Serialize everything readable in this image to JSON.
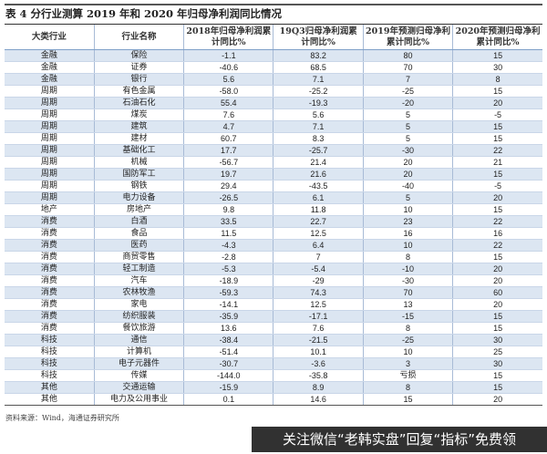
{
  "title": "表 4 分行业测算 2019 年和 2020 年归母净利润同比情况",
  "headers": [
    "大类行业",
    "行业名称",
    "2018年归母净利润累计同比%",
    "19Q3归母净利润累计同比%",
    "2019年预测归母净利累计同比%",
    "2020年预测归母净利累计同比%"
  ],
  "rows": [
    [
      "金融",
      "保险",
      "-1.1",
      "83.2",
      "80",
      "15"
    ],
    [
      "金融",
      "证券",
      "-40.6",
      "68.5",
      "70",
      "30"
    ],
    [
      "金融",
      "银行",
      "5.6",
      "7.1",
      "7",
      "8"
    ],
    [
      "周期",
      "有色金属",
      "-58.0",
      "-25.2",
      "-25",
      "15"
    ],
    [
      "周期",
      "石油石化",
      "55.4",
      "-19.3",
      "-20",
      "20"
    ],
    [
      "周期",
      "煤炭",
      "7.6",
      "5.6",
      "5",
      "-5"
    ],
    [
      "周期",
      "建筑",
      "4.7",
      "7.1",
      "5",
      "15"
    ],
    [
      "周期",
      "建材",
      "60.7",
      "8.3",
      "5",
      "15"
    ],
    [
      "周期",
      "基础化工",
      "17.7",
      "-25.7",
      "-30",
      "22"
    ],
    [
      "周期",
      "机械",
      "-56.7",
      "21.4",
      "20",
      "21"
    ],
    [
      "周期",
      "国防军工",
      "19.7",
      "21.6",
      "20",
      "15"
    ],
    [
      "周期",
      "钢铁",
      "29.4",
      "-43.5",
      "-40",
      "-5"
    ],
    [
      "周期",
      "电力设备",
      "-26.5",
      "6.1",
      "5",
      "20"
    ],
    [
      "地产",
      "房地产",
      "9.8",
      "11.8",
      "10",
      "15"
    ],
    [
      "消费",
      "白酒",
      "33.5",
      "22.7",
      "23",
      "22"
    ],
    [
      "消费",
      "食品",
      "11.5",
      "12.5",
      "16",
      "16"
    ],
    [
      "消费",
      "医药",
      "-4.3",
      "6.4",
      "10",
      "22"
    ],
    [
      "消费",
      "商贸零售",
      "-2.8",
      "7",
      "8",
      "15"
    ],
    [
      "消费",
      "轻工制造",
      "-5.3",
      "-5.4",
      "-10",
      "20"
    ],
    [
      "消费",
      "汽车",
      "-18.9",
      "-29",
      "-30",
      "20"
    ],
    [
      "消费",
      "农林牧渔",
      "-59.3",
      "74.3",
      "70",
      "60"
    ],
    [
      "消费",
      "家电",
      "-14.1",
      "12.5",
      "13",
      "20"
    ],
    [
      "消费",
      "纺织服装",
      "-35.9",
      "-17.1",
      "-15",
      "15"
    ],
    [
      "消费",
      "餐饮旅游",
      "13.6",
      "7.6",
      "8",
      "15"
    ],
    [
      "科技",
      "通信",
      "-38.4",
      "-21.5",
      "-25",
      "30"
    ],
    [
      "科技",
      "计算机",
      "-51.4",
      "10.1",
      "10",
      "25"
    ],
    [
      "科技",
      "电子元器件",
      "-30.7",
      "-3.6",
      "3",
      "30"
    ],
    [
      "科技",
      "传媒",
      "-144.0",
      "-35.8",
      "亏损",
      "15"
    ],
    [
      "其他",
      "交通运输",
      "-15.9",
      "8.9",
      "8",
      "15"
    ],
    [
      "其他",
      "电力及公用事业",
      "0.1",
      "14.6",
      "15",
      "20"
    ]
  ],
  "source": "资料来源：Wind，海通证券研究所",
  "watermark": "关注微信“老韩实盘”回复“指标”免费领",
  "colors": {
    "row_shade": "#dce6f2",
    "header_rule": "#333333"
  }
}
